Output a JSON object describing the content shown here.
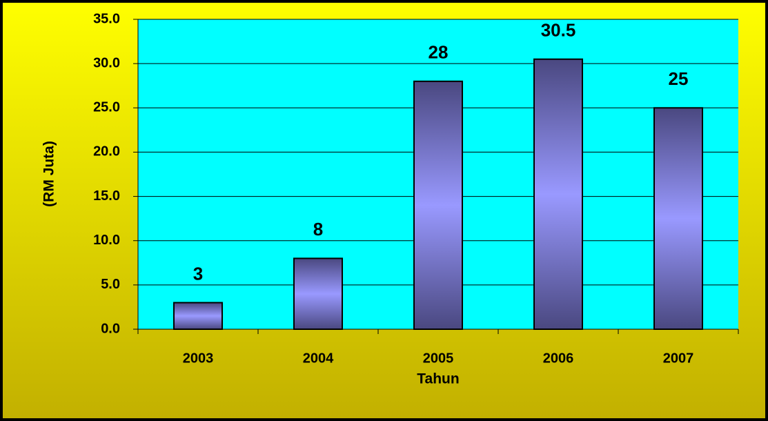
{
  "chart_data": {
    "type": "bar",
    "x_label": "Tahun",
    "y_label": "(RM Juta)",
    "categories": [
      "2003",
      "2004",
      "2005",
      "2006",
      "2007"
    ],
    "values": [
      3,
      8,
      28,
      30.5,
      25
    ],
    "color": "#9999ff",
    "ylim": [
      0,
      35
    ],
    "yticks": [
      {
        "value": 0,
        "label": "0.0"
      },
      {
        "value": 5,
        "label": "5.0"
      },
      {
        "value": 10,
        "label": "10.0"
      },
      {
        "value": 15,
        "label": "15.0"
      },
      {
        "value": 20,
        "label": "20.0"
      },
      {
        "value": 25,
        "label": "25.0"
      },
      {
        "value": 30,
        "label": "30.0"
      },
      {
        "value": 35,
        "label": "35.0"
      }
    ],
    "grid": true
  }
}
